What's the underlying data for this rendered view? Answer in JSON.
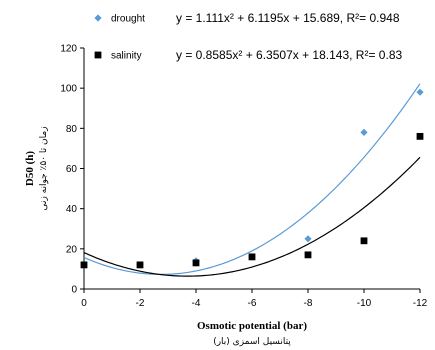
{
  "chart_data": {
    "type": "scatter",
    "xlabel": "Osmotic potential (bar)",
    "xlabel_sub": "پتانسیل اسمزی (بار)",
    "ylabel": "D50 (h)",
    "ylabel_sub": "زمان تا ۵۰٪ جوانه زنی",
    "x_ticks": [
      0,
      -2,
      -4,
      -6,
      -8,
      -10,
      -12
    ],
    "y_ticks": [
      0,
      20,
      40,
      60,
      80,
      100,
      120
    ],
    "xlim": [
      0,
      -12
    ],
    "ylim": [
      0,
      120
    ],
    "grid": false,
    "legend_position": "top",
    "series": [
      {
        "name": "drought",
        "marker": "diamond",
        "color": "#5b9bd5",
        "trend_color": "#5b9bd5",
        "equation": "y = 1.111x² + 6.1195x + 15.689, R²= 0.948",
        "coef": [
          1.111,
          6.1195,
          15.689
        ],
        "points": [
          [
            0,
            12
          ],
          [
            -2,
            12
          ],
          [
            -4,
            14
          ],
          [
            -6,
            16
          ],
          [
            -8,
            25
          ],
          [
            -10,
            78
          ],
          [
            -12,
            98
          ]
        ]
      },
      {
        "name": "salinity",
        "marker": "square",
        "color": "#000000",
        "trend_color": "#000000",
        "equation": "y = 0.8585x² + 6.3507x + 18.143, R²= 0.83",
        "coef": [
          0.8585,
          6.3507,
          18.143
        ],
        "points": [
          [
            0,
            12
          ],
          [
            -2,
            12
          ],
          [
            -4,
            13
          ],
          [
            -6,
            16
          ],
          [
            -8,
            17
          ],
          [
            -10,
            24
          ],
          [
            -12,
            76
          ]
        ]
      }
    ]
  }
}
